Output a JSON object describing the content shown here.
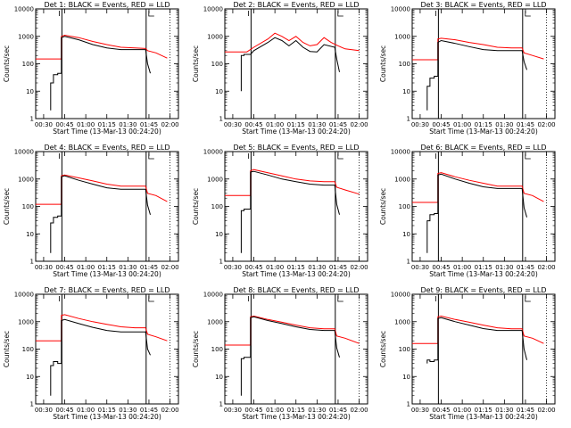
{
  "chart_data": {
    "shared": {
      "type": "line",
      "xlabel": "Start Time (13-Mar-13 00:24:20)",
      "ylabel": "Counts/sec",
      "x_tick_labels": [
        "00:30",
        "00:45",
        "01:00",
        "01:15",
        "01:30",
        "01:45",
        "02:00"
      ],
      "x_tick_minutes": [
        30,
        45,
        60,
        75,
        90,
        105,
        120
      ],
      "xlim_minutes": [
        24.33,
        126
      ],
      "y_tick_labels": [
        "1",
        "10",
        "100",
        "1000",
        "10000"
      ],
      "y_scale": "log",
      "ylim": [
        1,
        10000
      ],
      "series_colors": {
        "events": "#000000",
        "lld": "#ff0000"
      },
      "vertical_markers_minutes": [
        43,
        103
      ],
      "dotted_marker_minute": 120
    },
    "panels": [
      {
        "title": "Det 1: BLACK = Events, RED = LLD",
        "series": [
          {
            "color": "#ff0000",
            "x": [
              24.3,
              42.6,
              42.6,
              45,
              55,
              65,
              75,
              85,
              95,
              102.6,
              104,
              110,
              118
            ],
            "y": [
              150,
              150,
              1000,
              1100,
              900,
              650,
              500,
              400,
              380,
              360,
              300,
              250,
              160
            ]
          },
          {
            "color": "#000000",
            "x": [
              35,
              35,
              37,
              37,
              40,
              40,
              42.6,
              42.6,
              45,
              55,
              65,
              75,
              85,
              95,
              102.6,
              104,
              106
            ],
            "y": [
              2,
              20,
              20,
              40,
              40,
              45,
              45,
              900,
              1000,
              750,
              500,
              380,
              330,
              330,
              330,
              100,
              45
            ]
          }
        ]
      },
      {
        "title": "Det 2: BLACK = Events, RED = LLD",
        "series": [
          {
            "color": "#ff0000",
            "x": [
              24.3,
              30,
              40,
              45,
              55,
              60,
              65,
              70,
              75,
              80,
              85,
              90,
              95,
              100,
              105,
              110,
              120
            ],
            "y": [
              270,
              270,
              270,
              400,
              800,
              1300,
              1000,
              700,
              1000,
              600,
              450,
              500,
              900,
              600,
              450,
              350,
              300
            ]
          },
          {
            "color": "#000000",
            "x": [
              36,
              36,
              38,
              38,
              42.6,
              45,
              55,
              60,
              65,
              70,
              75,
              80,
              85,
              90,
              95,
              102.6,
              104,
              106
            ],
            "y": [
              10,
              200,
              200,
              220,
              220,
              300,
              600,
              900,
              700,
              450,
              700,
              400,
              280,
              270,
              500,
              400,
              150,
              50
            ]
          }
        ]
      },
      {
        "title": "Det 3: BLACK = Events, RED = LLD",
        "series": [
          {
            "color": "#ff0000",
            "x": [
              24.3,
              42.6,
              42.6,
              45,
              55,
              65,
              75,
              85,
              95,
              102.6,
              104,
              110,
              118
            ],
            "y": [
              140,
              140,
              800,
              850,
              750,
              600,
              500,
              400,
              380,
              380,
              250,
              200,
              150
            ]
          },
          {
            "color": "#000000",
            "x": [
              35,
              35,
              37,
              37,
              40,
              40,
              42.6,
              42.6,
              45,
              55,
              65,
              75,
              85,
              95,
              102.6,
              104,
              106
            ],
            "y": [
              2,
              15,
              15,
              30,
              30,
              35,
              35,
              600,
              700,
              550,
              420,
              330,
              300,
              300,
              300,
              120,
              60
            ]
          }
        ]
      },
      {
        "title": "Det 4: BLACK = Events, RED = LLD",
        "series": [
          {
            "color": "#ff0000",
            "x": [
              24.3,
              42.6,
              42.6,
              45,
              55,
              65,
              75,
              85,
              95,
              102.6,
              104,
              110,
              118
            ],
            "y": [
              120,
              120,
              1300,
              1400,
              1100,
              850,
              650,
              550,
              550,
              550,
              300,
              250,
              150
            ]
          },
          {
            "color": "#000000",
            "x": [
              35,
              35,
              37,
              37,
              40,
              40,
              42.6,
              42.6,
              45,
              55,
              65,
              75,
              85,
              95,
              102.6,
              104,
              106
            ],
            "y": [
              2,
              25,
              25,
              40,
              40,
              45,
              45,
              1200,
              1300,
              900,
              650,
              480,
              420,
              420,
              420,
              110,
              50
            ]
          }
        ]
      },
      {
        "title": "Det 5: BLACK = Events, RED = LLD",
        "series": [
          {
            "color": "#ff0000",
            "x": [
              24.3,
              42.6,
              42.6,
              45,
              55,
              65,
              75,
              85,
              95,
              102.6,
              104,
              110,
              120
            ],
            "y": [
              250,
              250,
              2000,
              2200,
              1700,
              1300,
              1000,
              850,
              800,
              800,
              500,
              400,
              280
            ]
          },
          {
            "color": "#000000",
            "x": [
              36,
              36,
              38,
              38,
              42.6,
              42.6,
              45,
              55,
              65,
              75,
              85,
              95,
              102.6,
              104,
              106
            ],
            "y": [
              2,
              70,
              70,
              80,
              80,
              1800,
              1900,
              1400,
              1000,
              800,
              650,
              600,
              600,
              120,
              50
            ]
          }
        ]
      },
      {
        "title": "Det 6: BLACK = Events, RED = LLD",
        "series": [
          {
            "color": "#ff0000",
            "x": [
              24.3,
              42.6,
              42.6,
              45,
              55,
              65,
              75,
              85,
              95,
              102.6,
              104,
              110,
              118
            ],
            "y": [
              140,
              140,
              1600,
              1700,
              1200,
              900,
              700,
              550,
              550,
              550,
              300,
              250,
              150
            ]
          },
          {
            "color": "#000000",
            "x": [
              35,
              35,
              37,
              37,
              40,
              40,
              42.6,
              42.6,
              45,
              55,
              65,
              75,
              85,
              95,
              102.6,
              104,
              106
            ],
            "y": [
              2,
              30,
              30,
              50,
              50,
              55,
              55,
              1400,
              1500,
              1000,
              700,
              520,
              450,
              450,
              450,
              90,
              40
            ]
          }
        ]
      },
      {
        "title": "Det 7: BLACK = Events, RED = LLD",
        "series": [
          {
            "color": "#ff0000",
            "x": [
              24.3,
              42.6,
              42.6,
              45,
              55,
              65,
              75,
              85,
              95,
              102.6,
              104,
              110,
              118
            ],
            "y": [
              200,
              200,
              1700,
              1800,
              1300,
              1000,
              800,
              650,
              600,
              600,
              350,
              280,
              200
            ]
          },
          {
            "color": "#000000",
            "x": [
              35,
              35,
              37,
              37,
              40,
              40,
              42.6,
              42.6,
              45,
              55,
              65,
              75,
              85,
              95,
              102.6,
              104,
              106
            ],
            "y": [
              2,
              25,
              25,
              35,
              35,
              30,
              30,
              1100,
              1200,
              850,
              620,
              480,
              420,
              420,
              420,
              100,
              60
            ]
          }
        ]
      },
      {
        "title": "Det 8: BLACK = Events, RED = LLD",
        "series": [
          {
            "color": "#ff0000",
            "x": [
              24.3,
              42.6,
              42.6,
              45,
              55,
              65,
              75,
              85,
              95,
              102.6,
              104,
              110,
              120
            ],
            "y": [
              140,
              140,
              1500,
              1600,
              1200,
              950,
              750,
              600,
              550,
              550,
              300,
              250,
              160
            ]
          },
          {
            "color": "#000000",
            "x": [
              36,
              36,
              38,
              38,
              42.6,
              42.6,
              45,
              55,
              65,
              75,
              85,
              95,
              102.6,
              104,
              106
            ],
            "y": [
              2,
              45,
              45,
              50,
              50,
              1400,
              1500,
              1100,
              850,
              650,
              520,
              480,
              480,
              110,
              50
            ]
          }
        ]
      },
      {
        "title": "Det 9: BLACK = Events, RED = LLD",
        "series": [
          {
            "color": "#ff0000",
            "x": [
              24.3,
              42.6,
              42.6,
              45,
              55,
              65,
              75,
              85,
              95,
              102.6,
              104,
              110,
              118
            ],
            "y": [
              160,
              160,
              1500,
              1600,
              1200,
              950,
              750,
              600,
              550,
              550,
              300,
              250,
              160
            ]
          },
          {
            "color": "#000000",
            "x": [
              35,
              35,
              37,
              37,
              40,
              40,
              42.6,
              42.6,
              45,
              55,
              65,
              75,
              85,
              95,
              102.6,
              104,
              106
            ],
            "y": [
              30,
              40,
              40,
              35,
              35,
              40,
              40,
              1300,
              1400,
              1000,
              750,
              560,
              480,
              480,
              480,
              100,
              40
            ]
          }
        ]
      }
    ]
  }
}
